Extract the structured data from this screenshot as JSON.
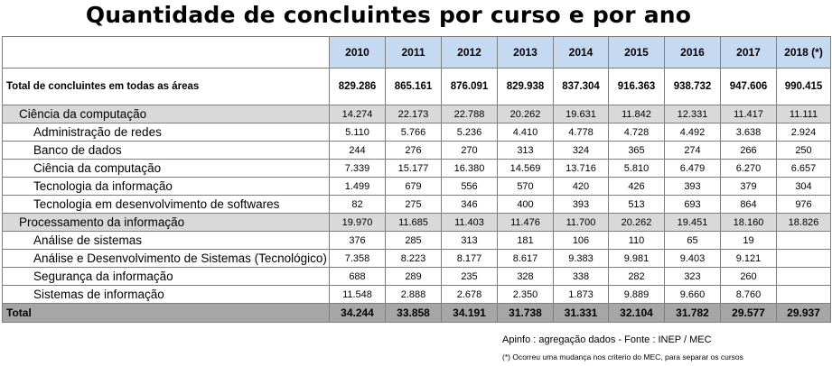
{
  "title": "Quantidade de concluintes por curso e por ano",
  "years": [
    "2010",
    "2011",
    "2012",
    "2013",
    "2014",
    "2015",
    "2016",
    "2017",
    "2018 (*)"
  ],
  "total_all": {
    "label": "Total de concluintes em todas as  áreas",
    "values": [
      "829.286",
      "865.161",
      "876.091",
      "829.938",
      "837.304",
      "916.363",
      "938.732",
      "947.606",
      "990.415"
    ]
  },
  "groups": [
    {
      "label": "Ciência da computação",
      "values": [
        "14.274",
        "22.173",
        "22.788",
        "20.262",
        "19.631",
        "11.842",
        "12.331",
        "11.417",
        "11.111"
      ],
      "rows": [
        {
          "label": "Administração de redes",
          "values": [
            "5.110",
            "5.766",
            "5.236",
            "4.410",
            "4.778",
            "4.728",
            "4.492",
            "3.638",
            "2.924"
          ]
        },
        {
          "label": "Banco de dados",
          "values": [
            "244",
            "276",
            "270",
            "313",
            "324",
            "365",
            "274",
            "266",
            "250"
          ]
        },
        {
          "label": "Ciência da computação",
          "values": [
            "7.339",
            "15.177",
            "16.380",
            "14.569",
            "13.716",
            "5.810",
            "6.479",
            "6.270",
            "6.657"
          ]
        },
        {
          "label": "Tecnologia da informação",
          "values": [
            "1.499",
            "679",
            "556",
            "570",
            "420",
            "426",
            "393",
            "379",
            "304"
          ]
        },
        {
          "label": "Tecnologia em desenvolvimento de softwares",
          "values": [
            "82",
            "275",
            "346",
            "400",
            "393",
            "513",
            "693",
            "864",
            "976"
          ]
        }
      ]
    },
    {
      "label": "Processamento da informação",
      "values": [
        "19.970",
        "11.685",
        "11.403",
        "11.476",
        "11.700",
        "20.262",
        "19.451",
        "18.160",
        "18.826"
      ],
      "rows": [
        {
          "label": "Análise de sistemas",
          "values": [
            "376",
            "285",
            "313",
            "181",
            "106",
            "110",
            "65",
            "19",
            ""
          ]
        },
        {
          "label": "Análise e Desenvolvimento de Sistemas (Tecnológico)",
          "values": [
            "7.358",
            "8.223",
            "8.177",
            "8.617",
            "9.383",
            "9.981",
            "9.403",
            "9.121",
            ""
          ]
        },
        {
          "label": "Segurança da informação",
          "values": [
            "688",
            "289",
            "235",
            "328",
            "338",
            "282",
            "323",
            "260",
            ""
          ]
        },
        {
          "label": "Sistemas de informação",
          "values": [
            "11.548",
            "2.888",
            "2.678",
            "2.350",
            "1.873",
            "9.889",
            "9.660",
            "8.760",
            ""
          ]
        }
      ]
    }
  ],
  "grand_total": {
    "label": "Total",
    "values": [
      "34.244",
      "33.858",
      "34.191",
      "31.738",
      "31.331",
      "32.104",
      "31.782",
      "29.577",
      "29.937"
    ]
  },
  "source_note": "Apinfo : agregação dados - Fonte : INEP / MEC",
  "footnote": "(*) Ocorreu uma mudança nos criterio do MEC, para separar os cursos"
}
